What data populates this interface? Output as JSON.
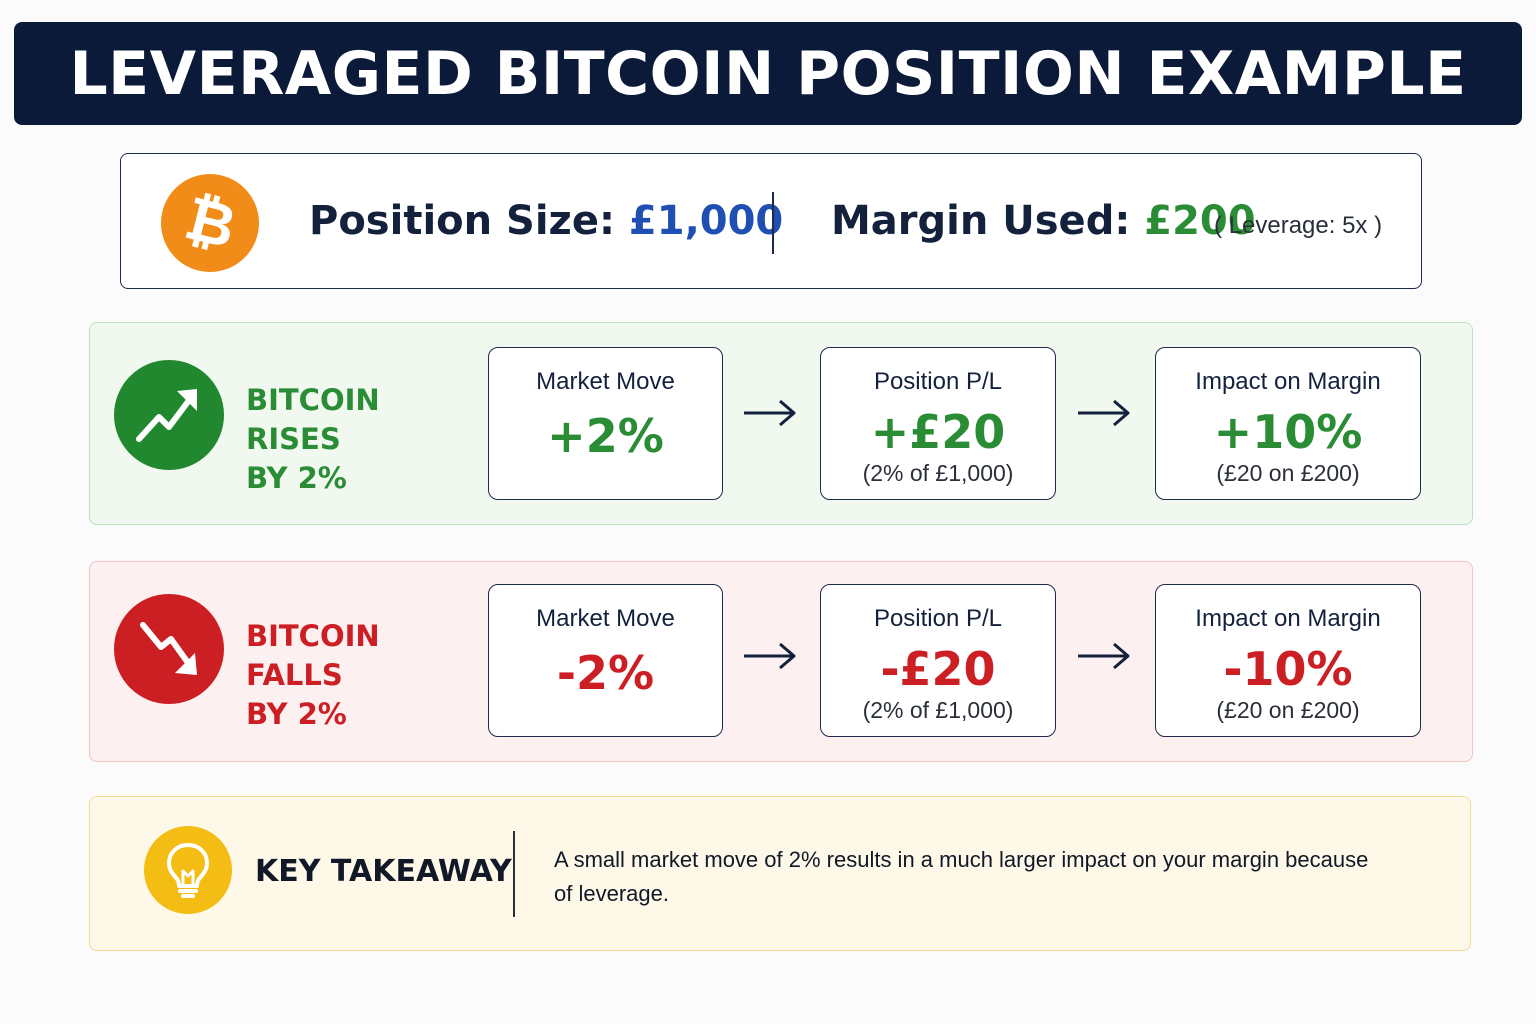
{
  "title": "LEVERAGED BITCOIN POSITION EXAMPLE",
  "summary": {
    "position_size_label": "Position Size:",
    "position_size_value": "£1,000",
    "margin_used_label": "Margin Used:",
    "margin_used_value": "£200",
    "leverage_note": "( Leverage: 5x )"
  },
  "scenarios": [
    {
      "label_line1": "BITCOIN RISES",
      "label_line2": "BY 2%",
      "market_move_title": "Market Move",
      "market_move_value": "+2%",
      "position_pl_title": "Position P/L",
      "position_pl_value": "+£20",
      "position_pl_note": "(2% of £1,000)",
      "impact_title": "Impact on Margin",
      "impact_value": "+10%",
      "impact_note": "(£20 on £200)"
    },
    {
      "label_line1": "BITCOIN FALLS",
      "label_line2": "BY 2%",
      "market_move_title": "Market Move",
      "market_move_value": "-2%",
      "position_pl_title": "Position P/L",
      "position_pl_value": "-£20",
      "position_pl_note": "(2% of £1,000)",
      "impact_title": "Impact on Margin",
      "impact_value": "-10%",
      "impact_note": "(£20 on £200)"
    }
  ],
  "takeaway": {
    "title": "KEY TAKEAWAY",
    "text": "A small market move of 2% results in a much larger impact on your margin because of leverage."
  },
  "icons": {
    "logo": "bitcoin-icon",
    "rise": "trend-up-icon",
    "fall": "trend-down-icon",
    "arrow": "arrow-right-icon",
    "takeaway": "lightbulb-icon"
  },
  "colors": {
    "banner": "#0c1a3a",
    "bitcoin": "#f28c18",
    "positive": "#2a8c34",
    "negative": "#cc1f24",
    "highlight_blue": "#1f4fb3",
    "bulb": "#f3bd14"
  }
}
